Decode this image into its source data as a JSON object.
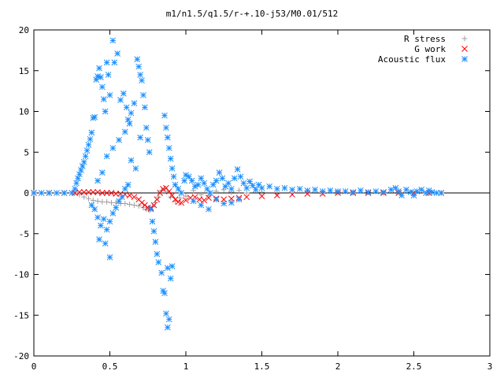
{
  "chart_data": {
    "type": "scatter",
    "title": "m1/n1.5/q1.5/r-+.10-j53/M0.01/512",
    "xlabel": "",
    "ylabel": "",
    "xlim": [
      0,
      3
    ],
    "ylim": [
      -20,
      20
    ],
    "x_ticks": [
      0,
      0.5,
      1,
      1.5,
      2,
      2.5,
      3
    ],
    "x_tick_labels": [
      "0",
      "0.5",
      "1",
      "1.5",
      "2",
      "2.5",
      "3"
    ],
    "y_ticks": [
      -20,
      -15,
      -10,
      -5,
      0,
      5,
      10,
      15,
      20
    ],
    "y_tick_labels": [
      "-20",
      "-15",
      "-10",
      "-5",
      "0",
      "5",
      "10",
      "15",
      "20"
    ],
    "grid": false,
    "legend_position": "top-right",
    "series": [
      {
        "name": "R stress",
        "marker": "plus",
        "color": "#a0a0a0",
        "points": [
          [
            0.0,
            0.0
          ],
          [
            0.1,
            0.0
          ],
          [
            0.2,
            0.0
          ],
          [
            0.27,
            0.0
          ],
          [
            0.3,
            -0.2
          ],
          [
            0.33,
            -0.5
          ],
          [
            0.36,
            -0.7
          ],
          [
            0.39,
            -0.9
          ],
          [
            0.42,
            -1.0
          ],
          [
            0.45,
            -1.1
          ],
          [
            0.48,
            -1.1
          ],
          [
            0.51,
            -1.2
          ],
          [
            0.54,
            -1.2
          ],
          [
            0.57,
            -1.3
          ],
          [
            0.6,
            -1.3
          ],
          [
            0.63,
            -1.4
          ],
          [
            0.66,
            -1.5
          ],
          [
            0.69,
            -1.6
          ],
          [
            0.72,
            -1.8
          ],
          [
            0.74,
            -2.0
          ],
          [
            0.76,
            -2.1
          ],
          [
            0.78,
            -1.7
          ],
          [
            0.8,
            -1.2
          ],
          [
            0.82,
            -0.5
          ],
          [
            0.84,
            0.3
          ],
          [
            0.86,
            0.5
          ],
          [
            0.88,
            0.2
          ],
          [
            0.9,
            -0.5
          ],
          [
            0.93,
            -1.0
          ],
          [
            0.96,
            -0.6
          ],
          [
            1.0,
            -0.4
          ],
          [
            1.05,
            0.3
          ],
          [
            1.1,
            -0.2
          ],
          [
            1.15,
            -0.3
          ],
          [
            1.2,
            0.2
          ],
          [
            1.25,
            0.4
          ],
          [
            1.3,
            0.1
          ],
          [
            1.35,
            0.3
          ],
          [
            1.4,
            0.0
          ],
          [
            1.5,
            0.1
          ],
          [
            1.6,
            -0.1
          ],
          [
            1.7,
            0.0
          ],
          [
            1.8,
            0.1
          ],
          [
            1.9,
            0.0
          ],
          [
            2.0,
            0.1
          ],
          [
            2.1,
            0.0
          ],
          [
            2.2,
            0.1
          ],
          [
            2.3,
            0.0
          ],
          [
            2.4,
            0.1
          ],
          [
            2.5,
            0.0
          ],
          [
            2.6,
            0.0
          ],
          [
            2.68,
            0.0
          ]
        ]
      },
      {
        "name": "G work",
        "marker": "cross",
        "color": "#ff0000",
        "points": [
          [
            0.0,
            0.0
          ],
          [
            0.1,
            0.0
          ],
          [
            0.2,
            0.0
          ],
          [
            0.27,
            0.0
          ],
          [
            0.3,
            0.1
          ],
          [
            0.33,
            0.1
          ],
          [
            0.36,
            0.1
          ],
          [
            0.39,
            0.1
          ],
          [
            0.42,
            0.1
          ],
          [
            0.45,
            0.0
          ],
          [
            0.48,
            0.0
          ],
          [
            0.51,
            0.0
          ],
          [
            0.54,
            -0.1
          ],
          [
            0.57,
            -0.1
          ],
          [
            0.6,
            -0.2
          ],
          [
            0.63,
            -0.3
          ],
          [
            0.66,
            -0.5
          ],
          [
            0.69,
            -0.8
          ],
          [
            0.71,
            -1.2
          ],
          [
            0.73,
            -1.5
          ],
          [
            0.75,
            -1.8
          ],
          [
            0.77,
            -1.9
          ],
          [
            0.79,
            -1.5
          ],
          [
            0.81,
            -0.8
          ],
          [
            0.83,
            0.0
          ],
          [
            0.85,
            0.5
          ],
          [
            0.87,
            0.6
          ],
          [
            0.89,
            0.2
          ],
          [
            0.91,
            -0.3
          ],
          [
            0.93,
            -0.8
          ],
          [
            0.95,
            -1.1
          ],
          [
            0.97,
            -1.2
          ],
          [
            1.0,
            -0.9
          ],
          [
            1.03,
            -0.6
          ],
          [
            1.06,
            -0.5
          ],
          [
            1.09,
            -0.8
          ],
          [
            1.12,
            -0.9
          ],
          [
            1.15,
            -0.6
          ],
          [
            1.2,
            -0.7
          ],
          [
            1.25,
            -0.8
          ],
          [
            1.3,
            -0.7
          ],
          [
            1.35,
            -0.6
          ],
          [
            1.4,
            -0.5
          ],
          [
            1.5,
            -0.4
          ],
          [
            1.6,
            -0.3
          ],
          [
            1.7,
            -0.2
          ],
          [
            1.8,
            -0.1
          ],
          [
            1.9,
            -0.1
          ],
          [
            2.0,
            0.0
          ],
          [
            2.1,
            0.0
          ],
          [
            2.2,
            0.0
          ],
          [
            2.3,
            0.0
          ],
          [
            2.4,
            0.0
          ],
          [
            2.5,
            0.0
          ],
          [
            2.6,
            0.0
          ],
          [
            2.68,
            0.0
          ]
        ]
      },
      {
        "name": "Acoustic flux",
        "marker": "star",
        "color": "#1e90ff",
        "points": [
          [
            0.0,
            0.0
          ],
          [
            0.05,
            0.0
          ],
          [
            0.1,
            0.0
          ],
          [
            0.15,
            0.0
          ],
          [
            0.2,
            0.0
          ],
          [
            0.25,
            0.0
          ],
          [
            0.27,
            0.5
          ],
          [
            0.28,
            1.2
          ],
          [
            0.29,
            1.8
          ],
          [
            0.3,
            2.3
          ],
          [
            0.31,
            2.8
          ],
          [
            0.32,
            3.3
          ],
          [
            0.33,
            3.8
          ],
          [
            0.34,
            4.5
          ],
          [
            0.35,
            5.2
          ],
          [
            0.36,
            5.9
          ],
          [
            0.37,
            6.6
          ],
          [
            0.38,
            7.4
          ],
          [
            0.39,
            9.2
          ],
          [
            0.4,
            9.3
          ],
          [
            0.41,
            13.9
          ],
          [
            0.42,
            14.3
          ],
          [
            0.43,
            15.3
          ],
          [
            0.44,
            14.2
          ],
          [
            0.45,
            13.0
          ],
          [
            0.46,
            11.5
          ],
          [
            0.47,
            10.0
          ],
          [
            0.48,
            16.0
          ],
          [
            0.49,
            14.5
          ],
          [
            0.5,
            12.0
          ],
          [
            0.52,
            18.7
          ],
          [
            0.53,
            16.0
          ],
          [
            0.55,
            17.1
          ],
          [
            0.57,
            11.4
          ],
          [
            0.59,
            12.2
          ],
          [
            0.61,
            10.5
          ],
          [
            0.62,
            9.0
          ],
          [
            0.63,
            8.5
          ],
          [
            0.64,
            9.8
          ],
          [
            0.66,
            11.0
          ],
          [
            0.68,
            16.4
          ],
          [
            0.69,
            15.5
          ],
          [
            0.7,
            14.5
          ],
          [
            0.71,
            13.8
          ],
          [
            0.72,
            12.0
          ],
          [
            0.73,
            10.5
          ],
          [
            0.74,
            8.0
          ],
          [
            0.75,
            6.5
          ],
          [
            0.76,
            5.0
          ],
          [
            0.42,
            1.5
          ],
          [
            0.45,
            2.5
          ],
          [
            0.48,
            4.5
          ],
          [
            0.52,
            5.5
          ],
          [
            0.56,
            6.5
          ],
          [
            0.6,
            7.5
          ],
          [
            0.64,
            4.0
          ],
          [
            0.67,
            3.0
          ],
          [
            0.7,
            6.8
          ],
          [
            0.38,
            -1.5
          ],
          [
            0.4,
            -2.0
          ],
          [
            0.42,
            -3.0
          ],
          [
            0.44,
            -4.0
          ],
          [
            0.46,
            -3.2
          ],
          [
            0.48,
            -4.5
          ],
          [
            0.5,
            -3.5
          ],
          [
            0.52,
            -2.5
          ],
          [
            0.54,
            -1.8
          ],
          [
            0.56,
            -1.0
          ],
          [
            0.58,
            -0.5
          ],
          [
            0.6,
            0.5
          ],
          [
            0.62,
            1.0
          ],
          [
            0.43,
            -5.7
          ],
          [
            0.47,
            -6.2
          ],
          [
            0.5,
            -7.9
          ],
          [
            0.77,
            -2.0
          ],
          [
            0.78,
            -3.5
          ],
          [
            0.79,
            -4.7
          ],
          [
            0.8,
            -6.0
          ],
          [
            0.81,
            -7.5
          ],
          [
            0.82,
            -8.5
          ],
          [
            0.84,
            -9.8
          ],
          [
            0.85,
            -12.0
          ],
          [
            0.86,
            -12.3
          ],
          [
            0.87,
            -14.8
          ],
          [
            0.88,
            -16.5
          ],
          [
            0.89,
            -15.5
          ],
          [
            0.9,
            -10.5
          ],
          [
            0.88,
            -9.2
          ],
          [
            0.91,
            -9.0
          ],
          [
            0.86,
            9.5
          ],
          [
            0.87,
            8.0
          ],
          [
            0.88,
            6.8
          ],
          [
            0.89,
            5.5
          ],
          [
            0.9,
            4.2
          ],
          [
            0.91,
            3.0
          ],
          [
            0.92,
            2.0
          ],
          [
            0.93,
            1.0
          ],
          [
            0.95,
            0.5
          ],
          [
            0.97,
            0.0
          ],
          [
            0.99,
            1.5
          ],
          [
            1.0,
            2.2
          ],
          [
            1.02,
            2.0
          ],
          [
            1.04,
            1.5
          ],
          [
            1.06,
            0.8
          ],
          [
            1.08,
            1.0
          ],
          [
            1.1,
            1.8
          ],
          [
            1.12,
            1.2
          ],
          [
            1.14,
            0.5
          ],
          [
            1.16,
            0.0
          ],
          [
            1.18,
            1.0
          ],
          [
            1.2,
            1.5
          ],
          [
            1.22,
            2.5
          ],
          [
            1.24,
            1.8
          ],
          [
            1.26,
            0.8
          ],
          [
            1.28,
            1.2
          ],
          [
            1.3,
            0.5
          ],
          [
            1.32,
            1.8
          ],
          [
            1.34,
            2.9
          ],
          [
            1.36,
            2.0
          ],
          [
            1.38,
            1.2
          ],
          [
            1.4,
            0.6
          ],
          [
            1.42,
            1.4
          ],
          [
            1.44,
            0.9
          ],
          [
            1.46,
            0.4
          ],
          [
            1.48,
            1.0
          ],
          [
            1.5,
            0.6
          ],
          [
            1.55,
            0.8
          ],
          [
            1.6,
            0.5
          ],
          [
            1.65,
            0.6
          ],
          [
            1.7,
            0.4
          ],
          [
            1.75,
            0.5
          ],
          [
            1.8,
            0.3
          ],
          [
            1.85,
            0.4
          ],
          [
            1.9,
            0.2
          ],
          [
            1.95,
            0.3
          ],
          [
            2.0,
            0.2
          ],
          [
            2.05,
            0.2
          ],
          [
            2.1,
            0.1
          ],
          [
            2.15,
            0.3
          ],
          [
            2.2,
            0.1
          ],
          [
            2.25,
            0.2
          ],
          [
            2.3,
            0.1
          ],
          [
            2.35,
            0.4
          ],
          [
            2.38,
            0.6
          ],
          [
            2.4,
            0.2
          ],
          [
            2.42,
            -0.3
          ],
          [
            2.45,
            0.4
          ],
          [
            2.48,
            0.1
          ],
          [
            2.5,
            -0.3
          ],
          [
            2.52,
            0.2
          ],
          [
            2.55,
            0.4
          ],
          [
            2.58,
            0.0
          ],
          [
            2.6,
            0.3
          ],
          [
            2.62,
            0.1
          ],
          [
            2.65,
            0.0
          ],
          [
            2.68,
            0.0
          ],
          [
            1.1,
            -1.5
          ],
          [
            1.15,
            -2.0
          ],
          [
            1.25,
            -1.3
          ],
          [
            1.35,
            -0.8
          ],
          [
            1.3,
            -1.2
          ],
          [
            1.2,
            -0.8
          ],
          [
            1.05,
            -1.0
          ]
        ]
      }
    ]
  }
}
